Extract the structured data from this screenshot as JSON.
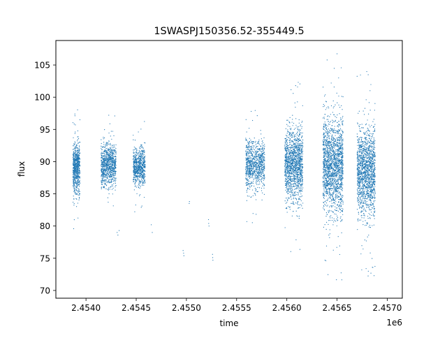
{
  "chart_data": {
    "type": "scatter",
    "title": "1SWASPJ150356.52-355449.5",
    "xlabel": "time",
    "ylabel": "flux",
    "x_offset_label": "1e6",
    "xlim": [
      2453700,
      2457150
    ],
    "ylim": [
      68.8,
      108.8
    ],
    "xticks": [
      2.454,
      2.4545,
      2.455,
      2.4555,
      2.456,
      2.4565,
      2.457
    ],
    "xtick_labels": [
      "2.4540",
      "2.4545",
      "2.4550",
      "2.4555",
      "2.4560",
      "2.4565",
      "2.4570"
    ],
    "yticks": [
      70,
      75,
      80,
      85,
      90,
      95,
      100,
      105
    ],
    "ytick_labels": [
      "70",
      "75",
      "80",
      "85",
      "90",
      "95",
      "100",
      "105"
    ],
    "grid": false,
    "marker_color": "#1f77b4",
    "clusters": [
      {
        "x": [
          2453870,
          2453940
        ],
        "y_center": 89,
        "y_spread": 3.2,
        "n": 700
      },
      {
        "x": [
          2454150,
          2454300
        ],
        "y_center": 89.5,
        "y_spread": 2.8,
        "n": 900
      },
      {
        "x": [
          2454470,
          2454590
        ],
        "y_center": 89.2,
        "y_spread": 2.4,
        "n": 700
      },
      {
        "x": [
          2455590,
          2455780
        ],
        "y_center": 89.5,
        "y_spread": 3.0,
        "n": 900
      },
      {
        "x": [
          2455980,
          2456160
        ],
        "y_center": 89.5,
        "y_spread": 4.5,
        "n": 1400
      },
      {
        "x": [
          2456360,
          2456560
        ],
        "y_center": 89.5,
        "y_spread": 6.0,
        "n": 1800
      },
      {
        "x": [
          2456700,
          2456880
        ],
        "y_center": 88.5,
        "y_spread": 5.5,
        "n": 1500
      }
    ],
    "sparse_points": [
      {
        "x": 2454310,
        "y": 79.0
      },
      {
        "x": 2454318,
        "y": 78.6
      },
      {
        "x": 2454330,
        "y": 79.3
      },
      {
        "x": 2454660,
        "y": 79.0
      },
      {
        "x": 2454650,
        "y": 80.2
      },
      {
        "x": 2454967,
        "y": 76.2
      },
      {
        "x": 2454972,
        "y": 75.8
      },
      {
        "x": 2454975,
        "y": 75.4
      },
      {
        "x": 2455030,
        "y": 83.8
      },
      {
        "x": 2455028,
        "y": 83.5
      },
      {
        "x": 2455220,
        "y": 81.0
      },
      {
        "x": 2455222,
        "y": 80.4
      },
      {
        "x": 2455225,
        "y": 80.0
      },
      {
        "x": 2455260,
        "y": 75.6
      },
      {
        "x": 2455262,
        "y": 75.1
      },
      {
        "x": 2455264,
        "y": 74.7
      }
    ]
  }
}
